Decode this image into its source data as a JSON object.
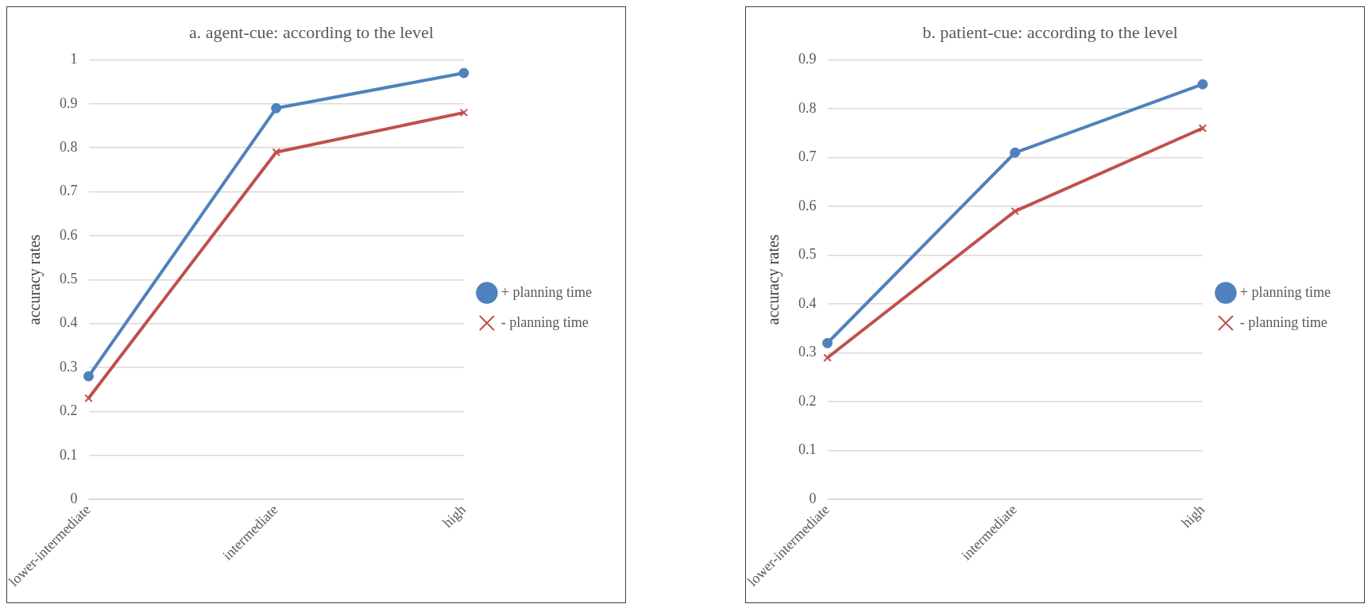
{
  "chart_data": [
    {
      "type": "line",
      "title": "a. agent-cue: according to the level",
      "ylabel": "accuracy rates",
      "categories": [
        "lower-intermediate",
        "intermediate",
        "high"
      ],
      "ylim": [
        0,
        1
      ],
      "yticks": [
        0,
        0.1,
        0.2,
        0.3,
        0.4,
        0.5,
        0.6,
        0.7,
        0.8,
        0.9,
        1
      ],
      "grid": "y",
      "legend": "right",
      "series": [
        {
          "name": "+ planning time",
          "color": "#4f81bd",
          "marker": "circle",
          "values": [
            0.28,
            0.89,
            0.97
          ]
        },
        {
          "name": "- planning time",
          "color": "#c0504d",
          "marker": "cross",
          "values": [
            0.23,
            0.79,
            0.88
          ]
        }
      ]
    },
    {
      "type": "line",
      "title": "b. patient-cue: according to the level",
      "ylabel": "accuracy rates",
      "categories": [
        "lower-intermediate",
        "intermediate",
        "high"
      ],
      "ylim": [
        0,
        0.9
      ],
      "yticks": [
        0,
        0.1,
        0.2,
        0.3,
        0.4,
        0.5,
        0.6,
        0.7,
        0.8,
        0.9
      ],
      "grid": "y",
      "legend": "right",
      "series": [
        {
          "name": "+ planning time",
          "color": "#4f81bd",
          "marker": "circle",
          "values": [
            0.32,
            0.71,
            0.85
          ]
        },
        {
          "name": "- planning time",
          "color": "#c0504d",
          "marker": "cross",
          "values": [
            0.29,
            0.59,
            0.76
          ]
        }
      ]
    }
  ]
}
